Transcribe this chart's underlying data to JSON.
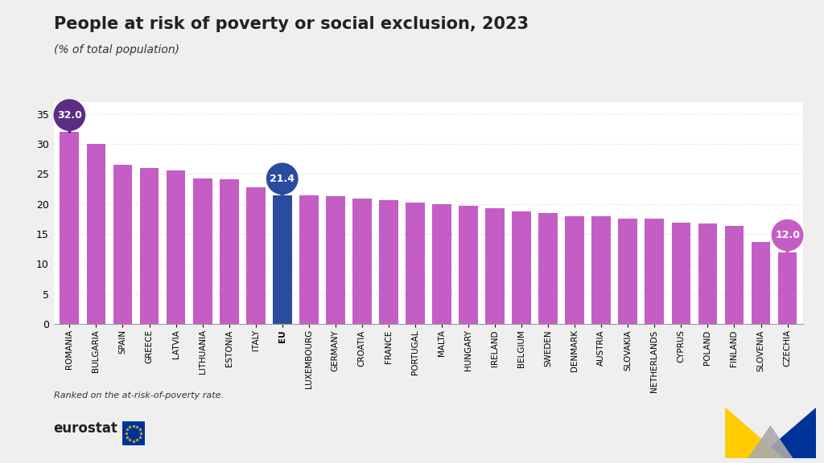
{
  "title": "People at risk of poverty or social exclusion, 2023",
  "subtitle": "(% of total population)",
  "footnote": "Ranked on the at-risk-of-poverty rate.",
  "categories": [
    "ROMANIA",
    "BULGARIA",
    "SPAIN",
    "GREECE",
    "LATVIA",
    "LITHUANIA",
    "ESTONIA",
    "ITALY",
    "EU",
    "LUXEMBOURG",
    "GERMANY",
    "CROATIA",
    "FRANCE",
    "PORTUGAL",
    "MALTA",
    "HUNGARY",
    "IRELAND",
    "BELGIUM",
    "SWEDEN",
    "DENMARK",
    "AUSTRIA",
    "SLOVAKIA",
    "NETHERLANDS",
    "CYPRUS",
    "POLAND",
    "FINLAND",
    "SLOVENIA",
    "CZECHIA"
  ],
  "values": [
    32.0,
    30.0,
    26.5,
    26.0,
    25.6,
    24.3,
    24.1,
    22.8,
    21.4,
    21.4,
    21.3,
    20.9,
    20.6,
    20.2,
    19.9,
    19.7,
    19.3,
    18.7,
    18.5,
    18.0,
    17.9,
    17.5,
    17.5,
    16.9,
    16.8,
    16.3,
    13.7,
    12.0
  ],
  "bar_colors": [
    "#c45ec4",
    "#c45ec4",
    "#c45ec4",
    "#c45ec4",
    "#c45ec4",
    "#c45ec4",
    "#c45ec4",
    "#c45ec4",
    "#2b4ba0",
    "#c45ec4",
    "#c45ec4",
    "#c45ec4",
    "#c45ec4",
    "#c45ec4",
    "#c45ec4",
    "#c45ec4",
    "#c45ec4",
    "#c45ec4",
    "#c45ec4",
    "#c45ec4",
    "#c45ec4",
    "#c45ec4",
    "#c45ec4",
    "#c45ec4",
    "#c45ec4",
    "#c45ec4",
    "#c45ec4",
    "#c45ec4"
  ],
  "annotated_indices": [
    0,
    8,
    27
  ],
  "annotated_values": [
    "32.0",
    "21.4",
    "12.0"
  ],
  "annotated_colors": [
    "#5a2d82",
    "#2b4ba0",
    "#c45ec4"
  ],
  "ylim": [
    0,
    37
  ],
  "yticks": [
    0,
    5,
    10,
    15,
    20,
    25,
    30,
    35
  ],
  "background_color": "#efefef",
  "plot_bg_color": "#ffffff",
  "title_fontsize": 15,
  "subtitle_fontsize": 10,
  "axis_label_fontsize": 7.5,
  "ytick_fontsize": 9
}
